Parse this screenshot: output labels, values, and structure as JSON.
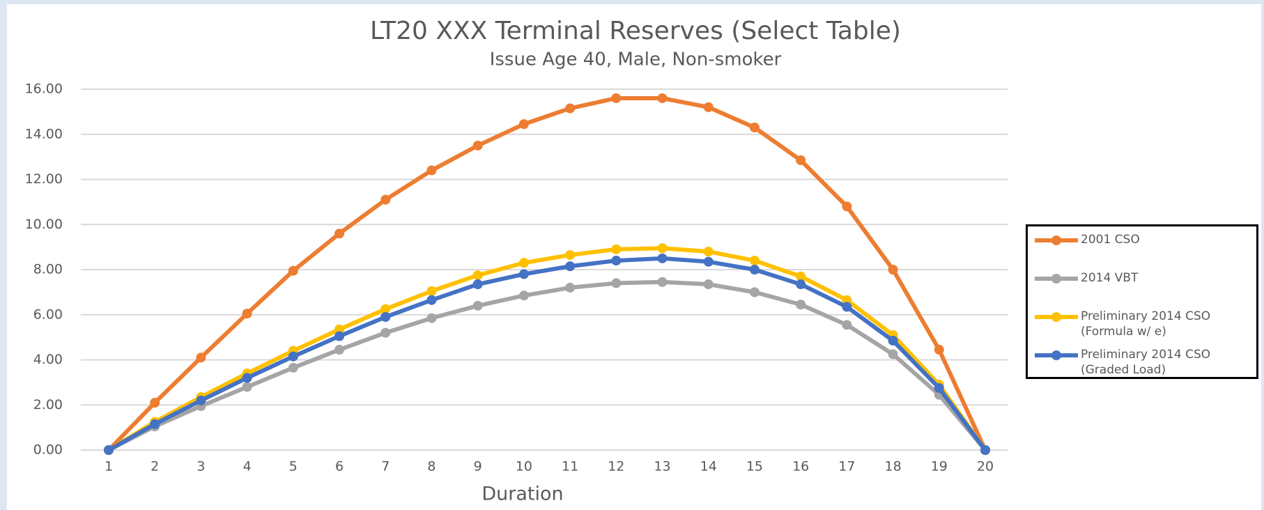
{
  "chart_data": {
    "type": "line",
    "title": "LT20 XXX Terminal Reserves (Select Table)",
    "subtitle": "Issue Age 40, Male, Non-smoker",
    "x_label": "Duration",
    "categories": [
      "1",
      "2",
      "3",
      "4",
      "5",
      "6",
      "7",
      "8",
      "9",
      "10",
      "11",
      "12",
      "13",
      "14",
      "15",
      "16",
      "17",
      "18",
      "19",
      "20"
    ],
    "series": [
      {
        "name": "2001 CSO",
        "color": "#ed7d31",
        "values": [
          0,
          2.1,
          4.1,
          6.05,
          7.95,
          9.6,
          11.1,
          12.4,
          13.5,
          14.45,
          15.15,
          15.6,
          15.6,
          15.2,
          14.3,
          12.85,
          10.8,
          8.0,
          4.45,
          0
        ]
      },
      {
        "name": "2014 VBT",
        "color": "#a5a5a5",
        "values": [
          0,
          1.05,
          1.95,
          2.8,
          3.65,
          4.45,
          5.2,
          5.85,
          6.4,
          6.85,
          7.2,
          7.4,
          7.45,
          7.35,
          7.0,
          6.45,
          5.55,
          4.25,
          2.45,
          0
        ]
      },
      {
        "name": "Preliminary 2014 CSO (Formula w/ e)",
        "color": "#ffc000",
        "values": [
          0,
          1.25,
          2.35,
          3.4,
          4.4,
          5.35,
          6.25,
          7.05,
          7.75,
          8.3,
          8.65,
          8.9,
          8.95,
          8.8,
          8.4,
          7.7,
          6.65,
          5.1,
          2.9,
          0
        ]
      },
      {
        "name": "Preliminary 2014 CSO (Graded Load)",
        "color": "#4472c4",
        "values": [
          0,
          1.15,
          2.2,
          3.2,
          4.15,
          5.05,
          5.9,
          6.65,
          7.35,
          7.8,
          8.15,
          8.4,
          8.5,
          8.35,
          8.0,
          7.35,
          6.35,
          4.85,
          2.75,
          0
        ]
      }
    ],
    "ylim": [
      0,
      16
    ],
    "yticks": [
      {
        "value": 0,
        "label": "0.00"
      },
      {
        "value": 2,
        "label": "2.00"
      },
      {
        "value": 4,
        "label": "4.00"
      },
      {
        "value": 6,
        "label": "6.00"
      },
      {
        "value": 8,
        "label": "8.00"
      },
      {
        "value": 10,
        "label": "10.00"
      },
      {
        "value": 12,
        "label": "12.00"
      },
      {
        "value": 14,
        "label": "14.00"
      },
      {
        "value": 16,
        "label": "16.00"
      }
    ],
    "grid": true,
    "legend": "right"
  }
}
